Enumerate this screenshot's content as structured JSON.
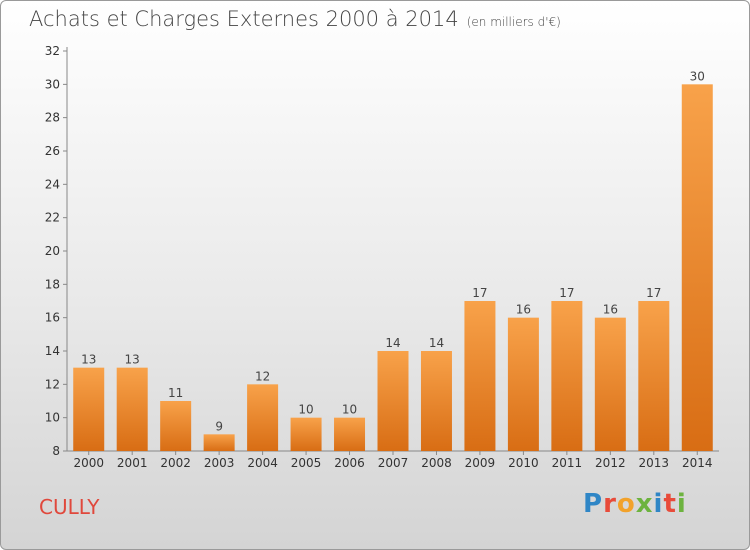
{
  "chart_data": {
    "type": "bar",
    "title": "Achats et Charges Externes 2000 à 2014",
    "subtitle": "(en milliers d'€)",
    "categories": [
      "2000",
      "2001",
      "2002",
      "2003",
      "2004",
      "2005",
      "2006",
      "2007",
      "2008",
      "2009",
      "2010",
      "2011",
      "2012",
      "2013",
      "2014"
    ],
    "values": [
      13,
      13,
      11,
      9,
      12,
      10,
      10,
      14,
      14,
      17,
      16,
      17,
      16,
      17,
      30
    ],
    "ylim": [
      8,
      32
    ],
    "yticks": [
      8,
      10,
      12,
      14,
      16,
      18,
      20,
      22,
      24,
      26,
      28,
      30,
      32
    ],
    "grid": false,
    "bar_color": "#f08a2c"
  },
  "footer": {
    "city": "CULLY",
    "logo_text": "Proxiti"
  },
  "colors": {
    "city_text": "#e0483c",
    "logo": [
      "#2f86c6",
      "#e84b3a",
      "#f2a22b",
      "#6db33f",
      "#2f86c6",
      "#e84b3a",
      "#6db33f"
    ]
  }
}
